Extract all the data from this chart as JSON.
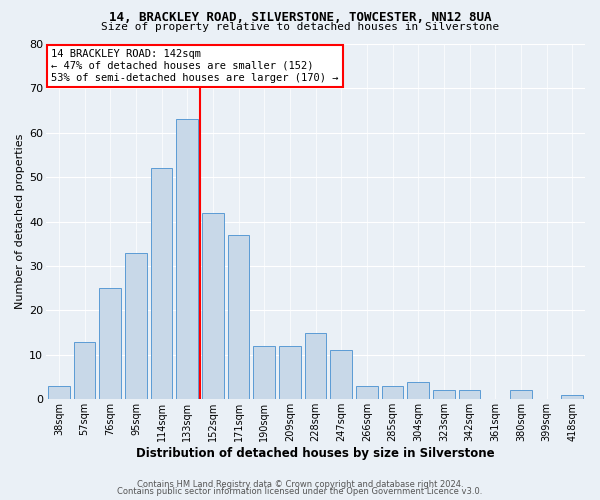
{
  "title1": "14, BRACKLEY ROAD, SILVERSTONE, TOWCESTER, NN12 8UA",
  "title2": "Size of property relative to detached houses in Silverstone",
  "xlabel": "Distribution of detached houses by size in Silverstone",
  "ylabel": "Number of detached properties",
  "categories": [
    "38sqm",
    "57sqm",
    "76sqm",
    "95sqm",
    "114sqm",
    "133sqm",
    "152sqm",
    "171sqm",
    "190sqm",
    "209sqm",
    "228sqm",
    "247sqm",
    "266sqm",
    "285sqm",
    "304sqm",
    "323sqm",
    "342sqm",
    "361sqm",
    "380sqm",
    "399sqm",
    "418sqm"
  ],
  "values": [
    3,
    13,
    25,
    33,
    52,
    63,
    42,
    37,
    12,
    12,
    15,
    11,
    3,
    3,
    4,
    2,
    2,
    0,
    2,
    0,
    1
  ],
  "bar_color": "#c8d8e8",
  "bar_edge_color": "#5b9bd5",
  "red_line_x": 5.5,
  "annotation_line1": "14 BRACKLEY ROAD: 142sqm",
  "annotation_line2": "← 47% of detached houses are smaller (152)",
  "annotation_line3": "53% of semi-detached houses are larger (170) →",
  "ylim": [
    0,
    80
  ],
  "yticks": [
    0,
    10,
    20,
    30,
    40,
    50,
    60,
    70,
    80
  ],
  "footer1": "Contains HM Land Registry data © Crown copyright and database right 2024.",
  "footer2": "Contains public sector information licensed under the Open Government Licence v3.0.",
  "bg_color": "#eaf0f6",
  "grid_color": "white"
}
